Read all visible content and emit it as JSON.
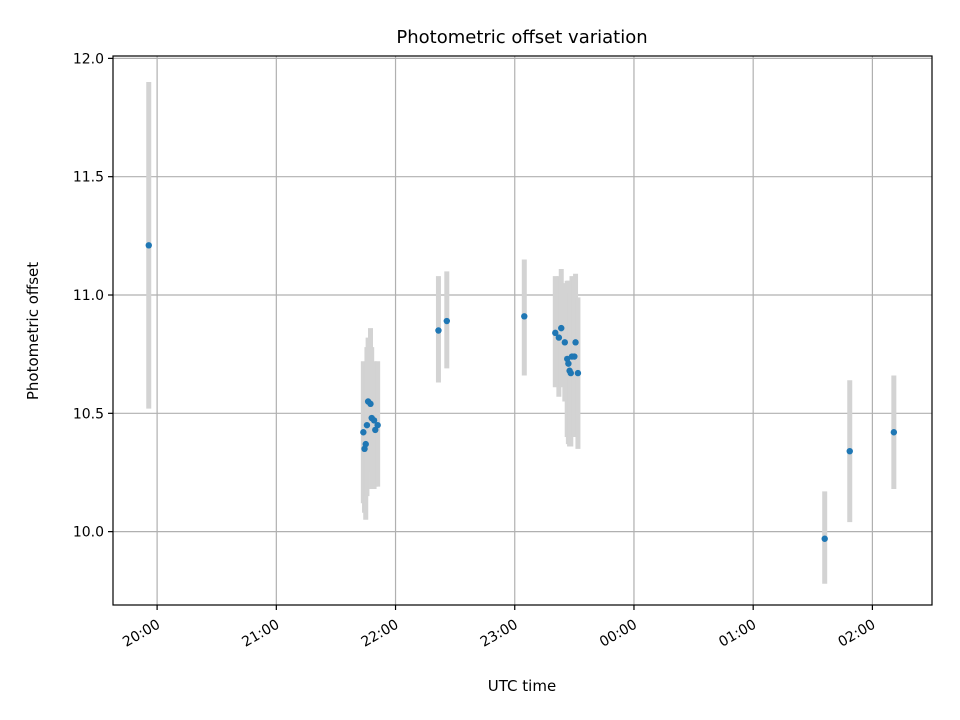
{
  "chart_data": {
    "type": "scatter",
    "title": "Photometric offset variation",
    "xlabel": "UTC time",
    "ylabel": "Photometric offset",
    "x_axis_unit": "hours since 19:00 UTC",
    "xlim": [
      0.63,
      7.5
    ],
    "ylim": [
      9.69,
      12.01
    ],
    "grid": true,
    "xticks": [
      {
        "value": 1,
        "label": "20:00"
      },
      {
        "value": 2,
        "label": "21:00"
      },
      {
        "value": 3,
        "label": "22:00"
      },
      {
        "value": 4,
        "label": "23:00"
      },
      {
        "value": 5,
        "label": "00:00"
      },
      {
        "value": 6,
        "label": "01:00"
      },
      {
        "value": 7,
        "label": "02:00"
      }
    ],
    "yticks": [
      {
        "value": 10.0,
        "label": "10.0"
      },
      {
        "value": 10.5,
        "label": "10.5"
      },
      {
        "value": 11.0,
        "label": "11.0"
      },
      {
        "value": 11.5,
        "label": "11.5"
      },
      {
        "value": 12.0,
        "label": "12.0"
      }
    ],
    "marker_color": "#1f77b4",
    "errorbar_color": "#d3d3d3",
    "points": [
      {
        "t": 0.93,
        "y": 11.21,
        "lo": 10.52,
        "hi": 11.9
      },
      {
        "t": 2.73,
        "y": 10.42,
        "lo": 10.12,
        "hi": 10.72
      },
      {
        "t": 2.74,
        "y": 10.35,
        "lo": 10.08,
        "hi": 10.62
      },
      {
        "t": 2.75,
        "y": 10.37,
        "lo": 10.05,
        "hi": 10.7
      },
      {
        "t": 2.76,
        "y": 10.45,
        "lo": 10.15,
        "hi": 10.78
      },
      {
        "t": 2.77,
        "y": 10.55,
        "lo": 10.25,
        "hi": 10.82
      },
      {
        "t": 2.79,
        "y": 10.54,
        "lo": 10.25,
        "hi": 10.86
      },
      {
        "t": 2.8,
        "y": 10.48,
        "lo": 10.18,
        "hi": 10.78
      },
      {
        "t": 2.82,
        "y": 10.47,
        "lo": 10.18,
        "hi": 10.72
      },
      {
        "t": 2.83,
        "y": 10.43,
        "lo": 10.19,
        "hi": 10.7
      },
      {
        "t": 2.85,
        "y": 10.45,
        "lo": 10.19,
        "hi": 10.72
      },
      {
        "t": 3.36,
        "y": 10.85,
        "lo": 10.63,
        "hi": 11.08
      },
      {
        "t": 3.43,
        "y": 10.89,
        "lo": 10.69,
        "hi": 11.1
      },
      {
        "t": 4.08,
        "y": 10.91,
        "lo": 10.66,
        "hi": 11.15
      },
      {
        "t": 4.34,
        "y": 10.84,
        "lo": 10.61,
        "hi": 11.08
      },
      {
        "t": 4.37,
        "y": 10.82,
        "lo": 10.57,
        "hi": 11.08
      },
      {
        "t": 4.39,
        "y": 10.86,
        "lo": 10.61,
        "hi": 11.11
      },
      {
        "t": 4.42,
        "y": 10.8,
        "lo": 10.55,
        "hi": 11.05
      },
      {
        "t": 4.44,
        "y": 10.73,
        "lo": 10.4,
        "hi": 11.06
      },
      {
        "t": 4.45,
        "y": 10.71,
        "lo": 10.37,
        "hi": 11.06
      },
      {
        "t": 4.46,
        "y": 10.68,
        "lo": 10.36,
        "hi": 11.01
      },
      {
        "t": 4.47,
        "y": 10.67,
        "lo": 10.36,
        "hi": 11.0
      },
      {
        "t": 4.48,
        "y": 10.74,
        "lo": 10.41,
        "hi": 11.08
      },
      {
        "t": 4.5,
        "y": 10.74,
        "lo": 10.4,
        "hi": 11.07
      },
      {
        "t": 4.51,
        "y": 10.8,
        "lo": 10.51,
        "hi": 11.09
      },
      {
        "t": 4.53,
        "y": 10.67,
        "lo": 10.35,
        "hi": 10.99
      },
      {
        "t": 6.6,
        "y": 9.97,
        "lo": 9.78,
        "hi": 10.17
      },
      {
        "t": 6.81,
        "y": 10.34,
        "lo": 10.04,
        "hi": 10.64
      },
      {
        "t": 7.18,
        "y": 10.42,
        "lo": 10.18,
        "hi": 10.66
      }
    ]
  }
}
